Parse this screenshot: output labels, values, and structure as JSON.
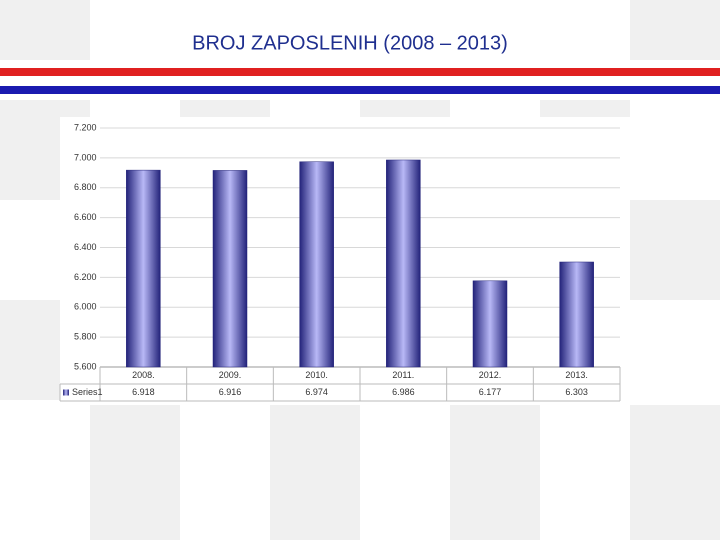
{
  "chart_data": {
    "type": "bar",
    "title": "BROJ ZAPOSLENIH (2008 – 2013)",
    "categories": [
      "2008.",
      "2009.",
      "2010.",
      "2011.",
      "2012.",
      "2013."
    ],
    "series": [
      {
        "name": "Series1",
        "color": "#23237a",
        "values": [
          6918,
          6916,
          6974,
          6986,
          6177,
          6303
        ],
        "value_labels": [
          "6.918",
          "6.916",
          "6.974",
          "6.986",
          "6.177",
          "6.303"
        ]
      }
    ],
    "ylim": [
      5600,
      7200
    ],
    "yticks": [
      {
        "value": 5600,
        "label": "5.600"
      },
      {
        "value": 5800,
        "label": "5.800"
      },
      {
        "value": 6000,
        "label": "6.000"
      },
      {
        "value": 6200,
        "label": "6.200"
      },
      {
        "value": 6400,
        "label": "6.400"
      },
      {
        "value": 6600,
        "label": "6.600"
      },
      {
        "value": 6800,
        "label": "6.800"
      },
      {
        "value": 7000,
        "label": "7.000"
      },
      {
        "value": 7200,
        "label": "7.200"
      }
    ],
    "grid": true,
    "data_table": true
  }
}
